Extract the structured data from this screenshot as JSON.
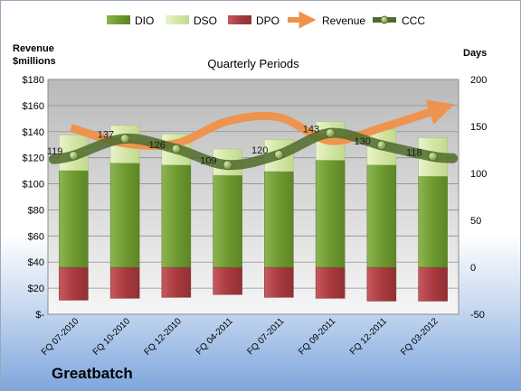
{
  "chart_data": {
    "type": "bar",
    "title": "Quarterly Periods",
    "company": "Greatbatch",
    "left_axis_title_line1": "Revenue",
    "left_axis_title_line2": "$millions",
    "right_axis_title": "Days",
    "categories": [
      "FQ 07-2010",
      "FQ 10-2010",
      "FQ 12-2010",
      "FQ 04-2011",
      "FQ 07-2011",
      "FQ 09-2011",
      "FQ 12-2011",
      "FQ 03-2012"
    ],
    "left_ylim": [
      0,
      180
    ],
    "left_ticks": [
      0,
      20,
      40,
      60,
      80,
      100,
      120,
      140,
      160,
      180
    ],
    "left_tick_labels": [
      "$-",
      "$20",
      "$40",
      "$60",
      "$80",
      "$100",
      "$120",
      "$140",
      "$160",
      "$180"
    ],
    "right_ylim": [
      -50,
      200
    ],
    "right_ticks": [
      -50,
      0,
      50,
      100,
      150,
      200
    ],
    "right_tick_labels": [
      "-50",
      "0",
      "50",
      "100",
      "150",
      "200"
    ],
    "grid": true,
    "legend_position": "top",
    "series": [
      {
        "name": "DIO",
        "kind": "bar",
        "axis": "right",
        "color": "#7aa33b",
        "values": [
          103,
          111,
          109,
          98,
          102,
          114,
          109,
          97
        ]
      },
      {
        "name": "DSO",
        "kind": "bar-stacked",
        "axis": "right",
        "color": "#d9ebb0",
        "values": [
          38,
          40,
          33,
          28,
          34,
          41,
          38,
          41
        ]
      },
      {
        "name": "DPO",
        "kind": "bar-negative",
        "axis": "right",
        "color": "#b5464b",
        "values": [
          -35,
          -33,
          -32,
          -29,
          -32,
          -33,
          -36,
          -36
        ]
      },
      {
        "name": "Revenue",
        "kind": "line-arrow",
        "axis": "left",
        "color": "#f0924a",
        "values": [
          143,
          131,
          131,
          148,
          151,
          133,
          143,
          158
        ]
      },
      {
        "name": "CCC",
        "kind": "line",
        "axis": "right",
        "color": "#4f6b2c",
        "values": [
          119,
          137,
          126,
          109,
          120,
          143,
          130,
          118
        ],
        "labels": [
          "119",
          "137",
          "126",
          "109",
          "120",
          "143",
          "130",
          "118"
        ]
      }
    ]
  }
}
